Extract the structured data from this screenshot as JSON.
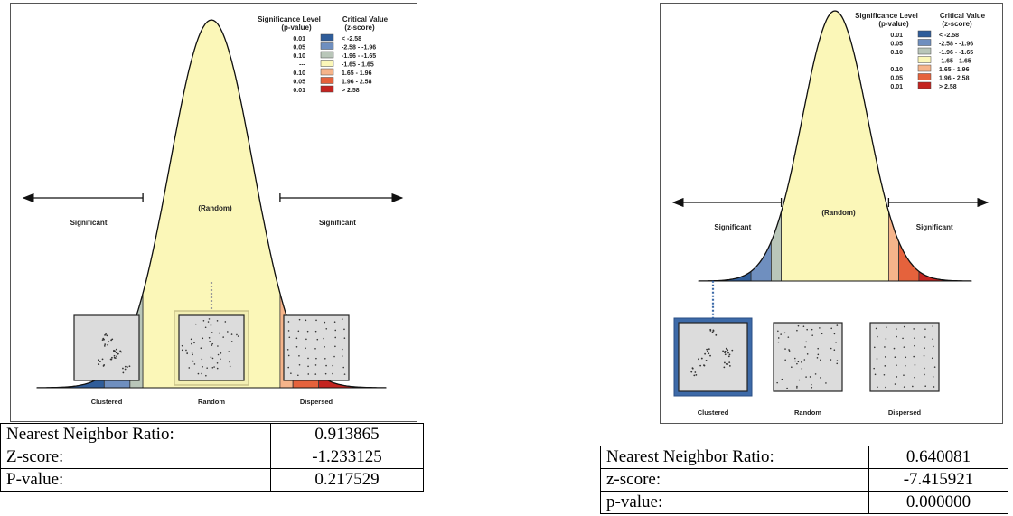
{
  "panels": [
    {
      "legend_headers": {
        "sig1": "Significance Level",
        "sig2": "(p-value)",
        "crit1": "Critical Value",
        "crit2": "(z-score)"
      },
      "legend_rows": [
        {
          "p": "0.01",
          "z": "< -2.58",
          "color": "#2f5d9a"
        },
        {
          "p": "0.05",
          "z": "-2.58 - -1.96",
          "color": "#6f8fbf"
        },
        {
          "p": "0.10",
          "z": "-1.96 - -1.65",
          "color": "#b9c6b9"
        },
        {
          "p": "---",
          "z": "-1.65 - 1.65",
          "color": "#fbf7b8"
        },
        {
          "p": "0.10",
          "z": "1.65 - 1.96",
          "color": "#f6b48a"
        },
        {
          "p": "0.05",
          "z": "1.96 - 2.58",
          "color": "#e5623c"
        },
        {
          "p": "0.01",
          "z": "> 2.58",
          "color": "#c42420"
        }
      ],
      "labels": {
        "random": "(Random)",
        "sig_left": "Significant",
        "sig_right": "Significant"
      },
      "captions": [
        "Clustered",
        "Random",
        "Dispersed"
      ],
      "highlight": 1,
      "highlight_color": "#f3efb3",
      "stats": [
        {
          "label": "Nearest Neighbor Ratio:",
          "value": "0.913865"
        },
        {
          "label": "Z-score:",
          "value": "-1.233125"
        },
        {
          "label": "P-value:",
          "value": "0.217529"
        }
      ]
    },
    {
      "legend_headers": {
        "sig1": "Significance Level",
        "sig2": "(p-value)",
        "crit1": "Critical Value",
        "crit2": "(z-score)"
      },
      "legend_rows": [
        {
          "p": "0.01",
          "z": "< -2.58",
          "color": "#2f5d9a"
        },
        {
          "p": "0.05",
          "z": "-2.58 - -1.96",
          "color": "#6f8fbf"
        },
        {
          "p": "0.10",
          "z": "-1.96 - -1.65",
          "color": "#b9c6b9"
        },
        {
          "p": "---",
          "z": "-1.65 - 1.65",
          "color": "#fbf7b8"
        },
        {
          "p": "0.10",
          "z": "1.65 - 1.96",
          "color": "#f6b48a"
        },
        {
          "p": "0.05",
          "z": "1.96 - 2.58",
          "color": "#e5623c"
        },
        {
          "p": "0.01",
          "z": "> 2.58",
          "color": "#c42420"
        }
      ],
      "labels": {
        "random": "(Random)",
        "sig_left": "Significant",
        "sig_right": "Significant"
      },
      "captions": [
        "Clustered",
        "Random",
        "Dispersed"
      ],
      "highlight": 0,
      "highlight_color": "#3d6aa8",
      "stats": [
        {
          "label": "Nearest Neighbor Ratio:",
          "value": "0.640081"
        },
        {
          "label": "z-score:",
          "value": "-7.415921"
        },
        {
          "label": "p-value:",
          "value": "0.000000"
        }
      ]
    }
  ]
}
